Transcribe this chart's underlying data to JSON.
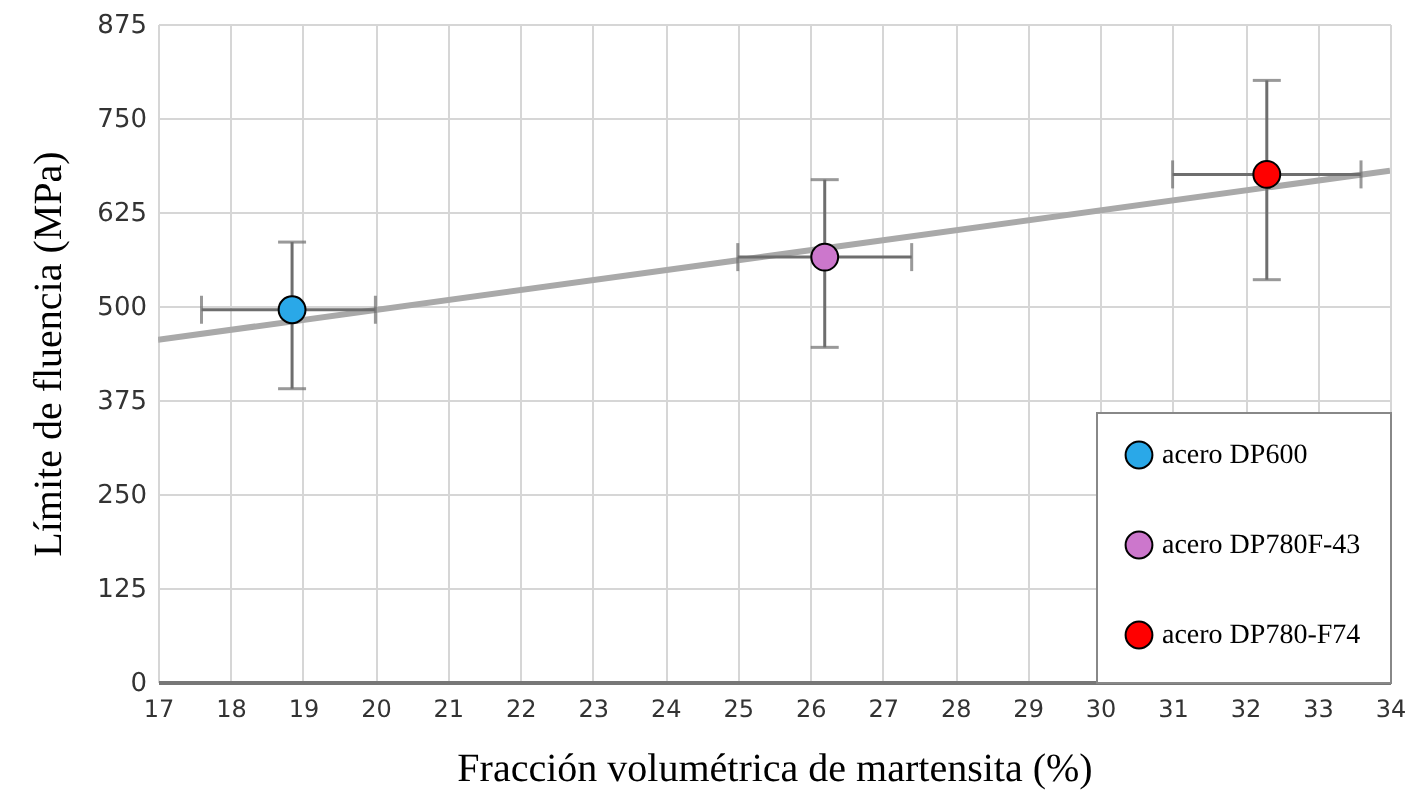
{
  "chart_data": {
    "type": "scatter",
    "xlabel": "Fracción volumétrica de martensita (%)",
    "ylabel": "Límite de fluencia (MPa)",
    "xlim": [
      17,
      34
    ],
    "xticks": [
      17,
      18,
      19,
      20,
      21,
      22,
      23,
      24,
      25,
      26,
      27,
      28,
      29,
      30,
      31,
      32,
      33,
      34
    ],
    "ylim": [
      0,
      875
    ],
    "yticks": [
      0,
      125,
      250,
      375,
      500,
      625,
      750,
      875
    ],
    "grid": true,
    "legend": "bottom right",
    "marker": "circle",
    "series": [
      {
        "type": "line",
        "marker": "none",
        "color": "#a9a9a9",
        "x": [
          17,
          34
        ],
        "values": [
          455,
          680
        ]
      },
      {
        "name": "acero DP600",
        "color": "#2aa8e8",
        "x": [
          18.85
        ],
        "values": [
          495
        ],
        "errors": [
          [
            390,
            585
          ]
        ],
        "xerrors": [
          [
            17.6,
            20.0
          ]
        ]
      },
      {
        "name": "acero DP780F-43",
        "color": "#cc77cc",
        "x": [
          26.2
        ],
        "values": [
          565
        ],
        "errors": [
          [
            445,
            668
          ]
        ],
        "xerrors": [
          [
            25.0,
            27.4
          ]
        ]
      },
      {
        "name": "acero DP780-F74",
        "color": "#ff0000",
        "x": [
          32.3
        ],
        "values": [
          675
        ],
        "errors": [
          [
            535,
            800
          ]
        ],
        "xerrors": [
          [
            31.0,
            33.6
          ]
        ]
      }
    ]
  }
}
